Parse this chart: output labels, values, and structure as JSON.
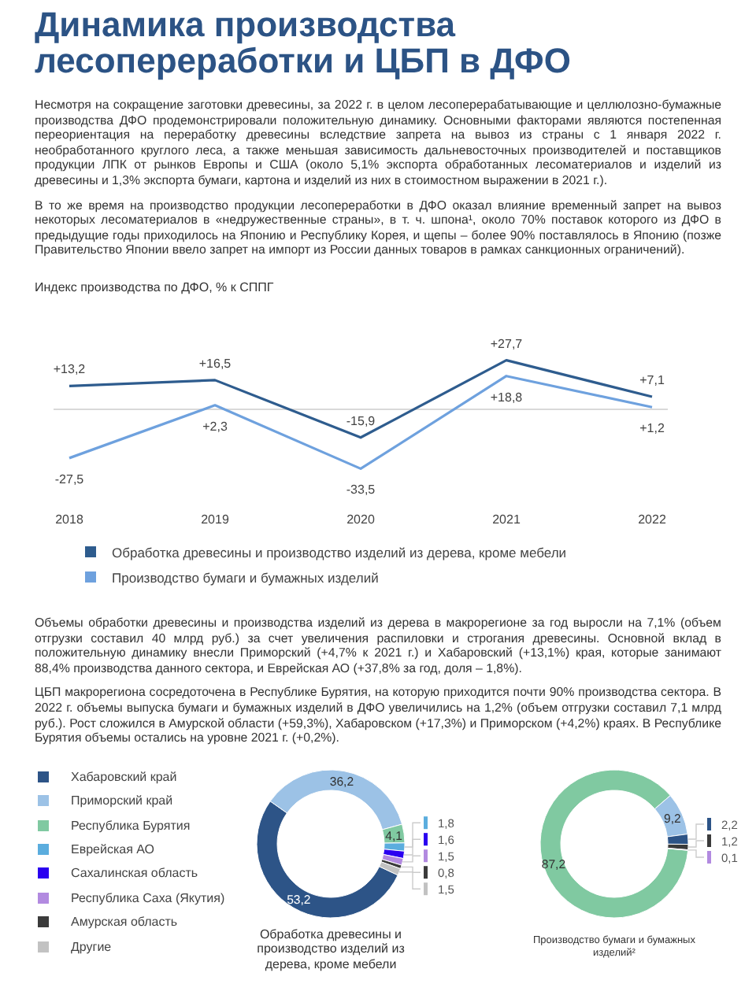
{
  "chart_data": [
    {
      "type": "other",
      "title": "Динамика производства лесопереработки и ЦБП в ДФО",
      "annotations": [
        "Несмотря на сокращение заготовки древесины, за 2022 г. в целом лесоперерабатывающие и целлюлозно-бумажные производства ДФО продемонстрировали положительную динамику. Основными факторами являются постепенная переориентация на переработку древесины вследствие запрета на вывоз из страны с 1 января 2022 г. необработанного круглого леса, а также меньшая зависимость дальневосточных производителей и поставщиков продукции ЛПК от рынков Европы и США (около 5,1% экспорта обработанных лесоматериалов и изделий из древесины и 1,3% экспорта бумаги, картона и изделий из них в стоимостном выражении в 2021 г.).",
        "В то же время на производство продукции лесопереработки в ДФО оказал влияние временный запрет на вывоз некоторых лесоматериалов в «недружественные страны», в т. ч. шпона¹, около 70% поставок которого из ДФО в предыдущие годы приходилось на Японию и Республику Корея, и щепы – более 90% поставлялось в Японию (позже Правительство Японии ввело запрет на импорт из России данных товаров в рамках санкционных ограничений)."
      ]
    },
    {
      "type": "line",
      "title": "Индекс производства по ДФО, % к СППГ",
      "categories": [
        "2018",
        "2019",
        "2020",
        "2021",
        "2022"
      ],
      "tick_labels": "x",
      "legend": "bottom",
      "marker": "none",
      "line_style": "solid",
      "ref_lines": [
        {
          "axis": "y",
          "value": 0,
          "color": "#d9d9d9"
        }
      ],
      "series": [
        {
          "name": "Обработка древесины и производство изделий из дерева, кроме мебели",
          "color": "#2e5c8e",
          "values": [
            13.2,
            16.5,
            -15.9,
            27.7,
            7.1
          ],
          "value_labels": [
            "+13,2",
            "+16,5",
            "-15,9",
            "+27,7",
            "+7,1"
          ]
        },
        {
          "name": "Производство бумаги и бумажных изделий",
          "color": "#6ea1de",
          "values": [
            -27.5,
            2.3,
            -33.5,
            18.8,
            1.2
          ],
          "value_labels": [
            "-27,5",
            "+2,3",
            "-33,5",
            "+18,8",
            "+1,2"
          ]
        }
      ]
    },
    {
      "type": "other",
      "annotations": [
        "Объемы обработки древесины и производства изделий из дерева в макрорегионе за год выросли на 7,1% (объем отгрузки составил 40 млрд руб.) за счет увеличения распиловки и строгания древесины. Основной вклад в положительную динамику внесли Приморский (+4,7% к 2021 г.) и Хабаровский (+13,1%) края, которые занимают 88,4% производства данного сектора, и Еврейская АО (+37,8% за год, доля – 1,8%).",
        "ЦБП макрорегиона сосредоточена в Республике Бурятия, на которую приходится почти 90% производства сектора. В 2022 г. объемы выпуска бумаги и бумажных изделий в ДФО увеличились на 1,2% (объем отгрузки составил 7,1 млрд руб.). Рост сложился в Амурской области (+59,3%), Хабаровском (+17,3%) и Приморском (+4,2%) краях. В Республике Бурятия объемы остались на уровне 2021 г. (+0,2%)."
      ]
    },
    {
      "type": "donut",
      "title": "Обработка древесины и производство изделий из дерева, кроме мебели",
      "legend": "left",
      "categories": [
        "Хабаровский край",
        "Приморский край",
        "Республика Бурятия",
        "Еврейская АО",
        "Сахалинская область",
        "Республика Саха (Якутия)",
        "Амурская область",
        "Другие"
      ],
      "values": [
        53.2,
        36.2,
        4.1,
        1.8,
        1.6,
        1.5,
        0.8,
        1.5
      ],
      "value_labels": [
        "53,2",
        "36,2",
        "4,1",
        "1,8",
        "1,6",
        "1,5",
        "0,8",
        "1,5"
      ],
      "colors": [
        "#2d5487",
        "#9cc2e6",
        "#80c9a1",
        "#5badde",
        "#2a00f0",
        "#b28ae0",
        "#3b3b3b",
        "#c2c2c2"
      ]
    },
    {
      "type": "donut",
      "title": "Производство бумаги и бумажных изделий²",
      "legend": false,
      "categories": [
        null,
        null,
        null,
        null,
        null
      ],
      "values": [
        87.2,
        9.2,
        2.2,
        1.2,
        0.1
      ],
      "value_labels": [
        "87,2",
        "9,2",
        "2,2",
        "1,2",
        "0,1"
      ],
      "colors": [
        "#80c9a1",
        "#9cc2e6",
        "#2d5487",
        "#3b3b3b",
        "#b28ae0"
      ]
    }
  ]
}
